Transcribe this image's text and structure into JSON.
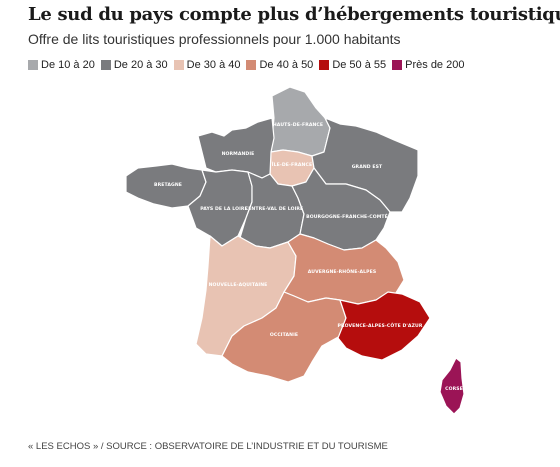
{
  "title": "Le sud du pays compte plus d’hébergements touristiques",
  "subtitle": "Offre de lits touristiques professionnels pour 1.000 habitants",
  "legend": [
    {
      "label": "De 10 à 20",
      "color": "#a7a9ac"
    },
    {
      "label": "De 20 à 30",
      "color": "#7a7b7e"
    },
    {
      "label": "De 30 à 40",
      "color": "#e8c3b3"
    },
    {
      "label": "De 40 à 50",
      "color": "#d38b74"
    },
    {
      "label": "De 50 à 55",
      "color": "#b50d0d"
    },
    {
      "label": "Près de 200",
      "color": "#9b1456"
    }
  ],
  "regions": {
    "hauts_de_france": {
      "label": "HAUTS-DE-FRANCE",
      "class": "De 10 à 20"
    },
    "ile_de_france": {
      "label": "ÎLE-DE-FRANCE",
      "class": "De 30 à 40"
    },
    "normandie": {
      "label": "NORMANDIE",
      "class": "De 20 à 30"
    },
    "grand_est": {
      "label": "GRAND EST",
      "class": "De 20 à 30"
    },
    "bretagne": {
      "label": "BRETAGNE",
      "class": "De 20 à 30"
    },
    "pays_de_la_loire": {
      "label": "PAYS DE LA LOIRE",
      "class": "De 20 à 30"
    },
    "centre_val_de_loire": {
      "label": "CENTRE-VAL DE LOIRE",
      "class": "De 20 à 30"
    },
    "bourgogne_franche_comte": {
      "label": "BOURGOGNE-FRANCHE-COMTÉ",
      "class": "De 20 à 30"
    },
    "nouvelle_aquitaine": {
      "label": "NOUVELLE-AQUITAINE",
      "class": "De 30 à 40"
    },
    "auvergne_rhone_alpes": {
      "label": "AUVERGNE-RHÔNE-ALPES",
      "class": "De 40 à 50"
    },
    "occitanie": {
      "label": "OCCITANIE",
      "class": "De 40 à 50"
    },
    "paca": {
      "label": "PROVENCE-ALPES-CÔTE D'AZUR",
      "class": "De 50 à 55"
    },
    "corse": {
      "label": "CORSE",
      "class": "Près de 200"
    }
  },
  "source": "« LES ECHOS » / SOURCE : OBSERVATOIRE DE L’INDUSTRIE ET DU TOURISME"
}
